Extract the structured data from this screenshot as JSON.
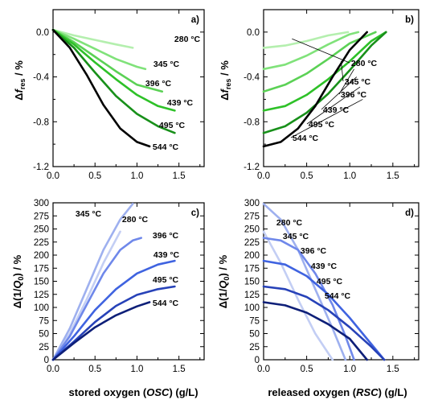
{
  "figure": {
    "xlabel_left": {
      "prefix": "stored oxygen (",
      "var": "OSC",
      "suffix": ") (g/L)"
    },
    "xlabel_right": {
      "prefix": "released oxygen (",
      "var": "RSC",
      "suffix": ") (g/L)"
    },
    "ylabel_top": {
      "prefix": "Δ",
      "var": "f",
      "sub": "res",
      "suffix": " / %"
    },
    "ylabel_bottom": {
      "prefix": "Δ(1/",
      "var": "Q",
      "sub": "0",
      "suffix": ") / %"
    }
  },
  "chart_data": [
    {
      "type": "line",
      "panel": "a)",
      "xlim": [
        0,
        1.8
      ],
      "ylim": [
        -1.2,
        0.2
      ],
      "xticks": [
        "0.0",
        "0.5",
        "1.0",
        "1.5"
      ],
      "yticks": [
        "-1.2",
        "-0.8",
        "-0.4",
        "0.0"
      ],
      "series": [
        {
          "name": "280 °C",
          "color": "#b4efae",
          "x": [
            0,
            0.25,
            0.5,
            0.75,
            0.95
          ],
          "y": [
            0.02,
            -0.03,
            -0.07,
            -0.11,
            -0.14
          ]
        },
        {
          "name": "345 °C",
          "color": "#80e27a",
          "x": [
            0,
            0.25,
            0.5,
            0.75,
            1.0,
            1.1
          ],
          "y": [
            0.02,
            -0.06,
            -0.15,
            -0.24,
            -0.31,
            -0.33
          ]
        },
        {
          "name": "396 °C",
          "color": "#5bd155",
          "x": [
            0,
            0.25,
            0.5,
            0.75,
            1.0,
            1.3
          ],
          "y": [
            0.02,
            -0.09,
            -0.22,
            -0.35,
            -0.47,
            -0.53
          ]
        },
        {
          "name": "439 °C",
          "color": "#2ec128",
          "x": [
            0,
            0.25,
            0.5,
            0.75,
            1.0,
            1.25,
            1.45
          ],
          "y": [
            0.02,
            -0.11,
            -0.27,
            -0.42,
            -0.56,
            -0.66,
            -0.7
          ]
        },
        {
          "name": "495 °C",
          "color": "#18901a",
          "x": [
            0,
            0.25,
            0.5,
            0.75,
            1.0,
            1.25,
            1.45
          ],
          "y": [
            0.02,
            -0.14,
            -0.36,
            -0.57,
            -0.73,
            -0.84,
            -0.9
          ]
        },
        {
          "name": "544 °C",
          "color": "#000000",
          "x": [
            0,
            0.2,
            0.4,
            0.6,
            0.8,
            1.0,
            1.15
          ],
          "y": [
            0.02,
            -0.14,
            -0.38,
            -0.65,
            -0.86,
            -0.98,
            -1.02
          ]
        }
      ]
    },
    {
      "type": "line",
      "panel": "b)",
      "xlim": [
        0,
        1.8
      ],
      "ylim": [
        -1.2,
        0.2
      ],
      "xticks": [
        "0.0",
        "0.5",
        "1.0",
        "1.5"
      ],
      "yticks": [
        "-1.2",
        "-0.8",
        "-0.4",
        "0.0"
      ],
      "series": [
        {
          "name": "280 °C",
          "color": "#b4efae",
          "x": [
            0,
            0.25,
            0.5,
            0.75,
            0.98
          ],
          "y": [
            -0.14,
            -0.12,
            -0.08,
            -0.03,
            0.0
          ]
        },
        {
          "name": "345 °C",
          "color": "#80e27a",
          "x": [
            0,
            0.25,
            0.5,
            0.75,
            1.0,
            1.1
          ],
          "y": [
            -0.33,
            -0.29,
            -0.21,
            -0.11,
            -0.02,
            0.0
          ]
        },
        {
          "name": "396 °C",
          "color": "#5bd155",
          "x": [
            0,
            0.25,
            0.5,
            0.75,
            1.0,
            1.3
          ],
          "y": [
            -0.53,
            -0.47,
            -0.37,
            -0.24,
            -0.1,
            0.0
          ]
        },
        {
          "name": "439 °C",
          "color": "#2ec128",
          "x": [
            0,
            0.25,
            0.5,
            0.75,
            1.0,
            1.25,
            1.42
          ],
          "y": [
            -0.7,
            -0.66,
            -0.56,
            -0.42,
            -0.26,
            -0.08,
            0.0
          ]
        },
        {
          "name": "495 °C",
          "color": "#18901a",
          "x": [
            0,
            0.25,
            0.5,
            0.75,
            1.0,
            1.25,
            1.42
          ],
          "y": [
            -0.9,
            -0.84,
            -0.72,
            -0.55,
            -0.34,
            -0.12,
            0.0
          ]
        },
        {
          "name": "544 °C",
          "color": "#000000",
          "x": [
            0,
            0.2,
            0.4,
            0.6,
            0.8,
            1.0,
            1.2
          ],
          "y": [
            -1.02,
            -0.98,
            -0.86,
            -0.66,
            -0.4,
            -0.16,
            0.0
          ]
        }
      ]
    },
    {
      "type": "line",
      "panel": "c)",
      "xlim": [
        0,
        1.8
      ],
      "ylim": [
        0,
        300
      ],
      "xticks": [
        "0.0",
        "0.5",
        "1.0",
        "1.5"
      ],
      "yticks": [
        "0",
        "25",
        "50",
        "75",
        "100",
        "125",
        "150",
        "175",
        "200",
        "225",
        "250",
        "275",
        "300"
      ],
      "series": [
        {
          "name": "280 °C",
          "color": "#c3cef4",
          "x": [
            0,
            0.2,
            0.4,
            0.6,
            0.8
          ],
          "y": [
            0,
            50,
            115,
            185,
            245
          ]
        },
        {
          "name": "345 °C",
          "color": "#9eb0ef",
          "x": [
            0,
            0.2,
            0.4,
            0.6,
            0.8,
            0.95
          ],
          "y": [
            0,
            60,
            135,
            210,
            268,
            298
          ]
        },
        {
          "name": "396 °C",
          "color": "#6f88ea",
          "x": [
            0,
            0.2,
            0.4,
            0.6,
            0.8,
            0.95,
            1.05
          ],
          "y": [
            0,
            45,
            105,
            165,
            210,
            228,
            233
          ]
        },
        {
          "name": "439 °C",
          "color": "#3f63e0",
          "x": [
            0,
            0.25,
            0.5,
            0.75,
            1.0,
            1.25,
            1.45
          ],
          "y": [
            0,
            45,
            95,
            135,
            165,
            182,
            189
          ]
        },
        {
          "name": "495 °C",
          "color": "#2742b8",
          "x": [
            0,
            0.25,
            0.5,
            0.75,
            1.0,
            1.25,
            1.45
          ],
          "y": [
            0,
            35,
            72,
            103,
            124,
            135,
            140
          ]
        },
        {
          "name": "544 °C",
          "color": "#0e1f78",
          "x": [
            0,
            0.25,
            0.5,
            0.75,
            1.0,
            1.15
          ],
          "y": [
            0,
            32,
            62,
            85,
            102,
            110
          ]
        }
      ]
    },
    {
      "type": "line",
      "panel": "d)",
      "xlim": [
        0,
        1.8
      ],
      "ylim": [
        0,
        300
      ],
      "xticks": [
        "0.0",
        "0.5",
        "1.0",
        "1.5"
      ],
      "yticks": [
        "0",
        "25",
        "50",
        "75",
        "100",
        "125",
        "150",
        "175",
        "200",
        "225",
        "250",
        "275",
        "300"
      ],
      "series": [
        {
          "name": "280 °C",
          "color": "#c3cef4",
          "x": [
            0,
            0.2,
            0.4,
            0.6,
            0.8
          ],
          "y": [
            245,
            185,
            115,
            50,
            0
          ]
        },
        {
          "name": "345 °C",
          "color": "#9eb0ef",
          "x": [
            0,
            0.2,
            0.4,
            0.6,
            0.8,
            0.95
          ],
          "y": [
            298,
            268,
            210,
            135,
            60,
            0
          ]
        },
        {
          "name": "396 °C",
          "color": "#6f88ea",
          "x": [
            0,
            0.2,
            0.4,
            0.6,
            0.8,
            0.95,
            1.05
          ],
          "y": [
            233,
            228,
            210,
            165,
            105,
            45,
            0
          ]
        },
        {
          "name": "439 °C",
          "color": "#3f63e0",
          "x": [
            0,
            0.25,
            0.5,
            0.75,
            1.0,
            1.25,
            1.4
          ],
          "y": [
            189,
            182,
            160,
            125,
            80,
            30,
            0
          ]
        },
        {
          "name": "495 °C",
          "color": "#2742b8",
          "x": [
            0,
            0.25,
            0.5,
            0.75,
            1.0,
            1.25,
            1.4
          ],
          "y": [
            140,
            135,
            120,
            95,
            62,
            25,
            0
          ]
        },
        {
          "name": "544 °C",
          "color": "#0e1f78",
          "x": [
            0,
            0.25,
            0.5,
            0.75,
            1.0,
            1.2
          ],
          "y": [
            110,
            104,
            90,
            68,
            40,
            0
          ]
        }
      ]
    }
  ]
}
